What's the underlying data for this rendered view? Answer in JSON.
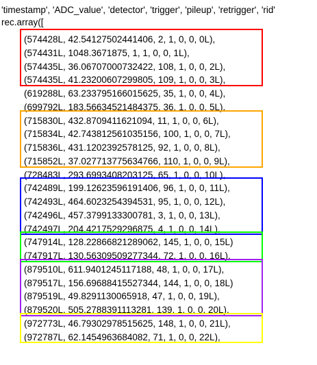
{
  "header": {
    "fields": "'timestamp', 'ADC_value', 'detector', 'trigger', 'pileup', 'retrigger', 'rid'",
    "rec_array": "rec.array(["
  },
  "rows": [
    "(574428L, 42.54127502441406, 2, 1, 0, 0, 0L),",
    "(574431L, 1048.3671875, 1, 1, 0, 0, 1L),",
    "(574435L, 36.06707000732422, 108, 1, 0, 0, 2L),",
    "(574435L, 41.23200607299805, 109, 1, 0, 0, 3L),",
    "(619288L, 63.233795166015625, 35, 1, 0, 0, 4L),",
    "(699792L, 183.56634521484375, 36, 1, 0, 0, 5L),",
    "(715830L, 432.8709411621094, 11, 1, 0, 0, 6L),",
    "(715834L, 42.743812561035156, 100, 1, 0, 0, 7L),",
    "(715836L, 431.1202392578125, 92, 1, 0, 0, 8L),",
    "(715852L, 37.027713775634766, 110, 1, 0, 0, 9L),",
    "(728483L, 293.6993408203125, 65, 1, 0, 0, 10L),",
    "(742489L, 199.12623596191406, 96, 1, 0, 0, 11L),",
    "(742493L, 464.6023254394531, 95, 1, 0, 0, 12L),",
    "(742496L, 457.3799133300781, 3, 1, 0, 0, 13L),",
    "(742497L, 204.4217529296875, 4, 1, 0, 0, 14L),",
    "(747914L, 128.22866821289062, 145, 1, 0, 0, 15L)",
    "(747917L, 130.56309509277344, 72, 1, 0, 0, 16L),",
    "(879510L, 611.9401245117188, 48, 1, 0, 0, 17L),",
    "(879517L, 156.69688415527344, 144, 1, 0, 0, 18L)",
    "(879519L, 49.8291130065918, 47, 1, 0, 0, 19L),",
    "(879520L, 505.2788391113281, 139, 1, 0, 0, 20L),",
    "(972773L, 46.79302978515625, 148, 1, 0, 0, 21L),",
    "(972787L, 62.1454963684082, 71, 1, 0, 0, 22L),"
  ],
  "highlight_groups": [
    {
      "name": "group-red",
      "color": "#ff0000",
      "first_row": 0,
      "last_row": 3
    },
    {
      "name": "group-orange",
      "color": "#ffa500",
      "first_row": 6,
      "last_row": 9
    },
    {
      "name": "group-blue",
      "color": "#0000ff",
      "first_row": 11,
      "last_row": 14
    },
    {
      "name": "group-green",
      "color": "#00ff00",
      "first_row": 15,
      "last_row": 16
    },
    {
      "name": "group-purple",
      "color": "#a020f0",
      "first_row": 17,
      "last_row": 20
    },
    {
      "name": "group-yellow",
      "color": "#ffff00",
      "first_row": 21,
      "last_row": 22
    }
  ]
}
